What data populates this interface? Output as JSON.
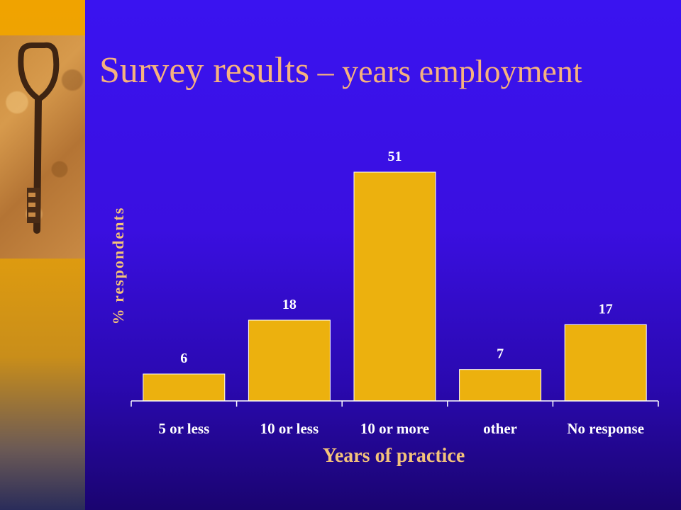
{
  "slide": {
    "title_main": "Survey results",
    "title_sub": " – years employment",
    "colors": {
      "background": "#3a13f0",
      "accent": "#f6b27e",
      "bar": "#ecb10e",
      "strip": "#f0a300"
    },
    "decoration": {
      "image": "rusty-key-photo"
    }
  },
  "chart_data": {
    "type": "bar",
    "title": "",
    "xlabel": "Years of practice",
    "ylabel": "% respondents",
    "categories": [
      "5 or less",
      "10 or less",
      "10 or more",
      "other",
      "No response"
    ],
    "values": [
      6,
      18,
      51,
      7,
      17
    ],
    "ylim": [
      0,
      55
    ],
    "grid": false,
    "data_labels": true
  }
}
